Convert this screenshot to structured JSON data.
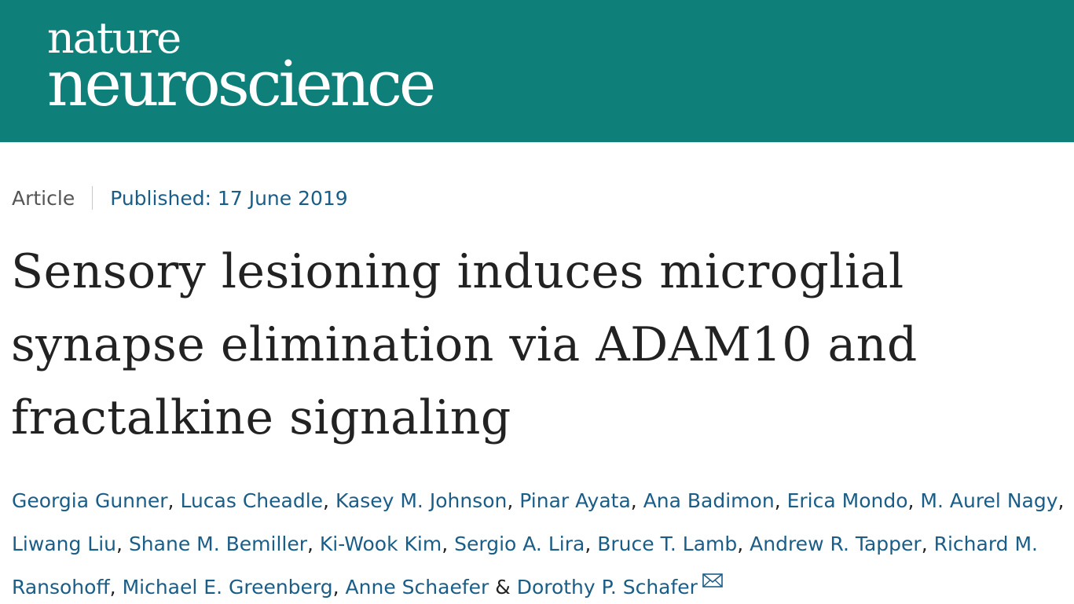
{
  "header": {
    "brand_line1": "nature",
    "brand_line2": "neuroscience",
    "background_color": "#0f7f7a"
  },
  "article_meta": {
    "type": "Article",
    "published": "Published: 17 June 2019"
  },
  "article": {
    "title": "Sensory lesioning induces microglial synapse elimination via ADAM10 and fractalkine signaling"
  },
  "authors": [
    {
      "name": "Georgia Gunner",
      "sep": ", "
    },
    {
      "name": "Lucas Cheadle",
      "sep": ", "
    },
    {
      "name": "Kasey M. Johnson",
      "sep": ", "
    },
    {
      "name": "Pinar Ayata",
      "sep": ", "
    },
    {
      "name": "Ana Badimon",
      "sep": ", "
    },
    {
      "name": "Erica Mondo",
      "sep": ", "
    },
    {
      "name": "M. Aurel Nagy",
      "sep": ", "
    },
    {
      "name": "Liwang Liu",
      "sep": ", "
    },
    {
      "name": "Shane M. Bemiller",
      "sep": ", "
    },
    {
      "name": "Ki-Wook Kim",
      "sep": ", "
    },
    {
      "name": "Sergio A. Lira",
      "sep": ", "
    },
    {
      "name": "Bruce T. Lamb",
      "sep": ", "
    },
    {
      "name": "Andrew R. Tapper",
      "sep": ", "
    },
    {
      "name": "Richard M. Ransohoff",
      "sep": ", "
    },
    {
      "name": "Michael E. Greenberg",
      "sep": ", "
    },
    {
      "name": "Anne Schaefer",
      "sep": " & "
    },
    {
      "name": "Dorothy P. Schafer",
      "sep": "",
      "icon": "mail-icon"
    }
  ],
  "colors": {
    "link": "#1a5d87",
    "text": "#222222",
    "muted": "#555555"
  }
}
